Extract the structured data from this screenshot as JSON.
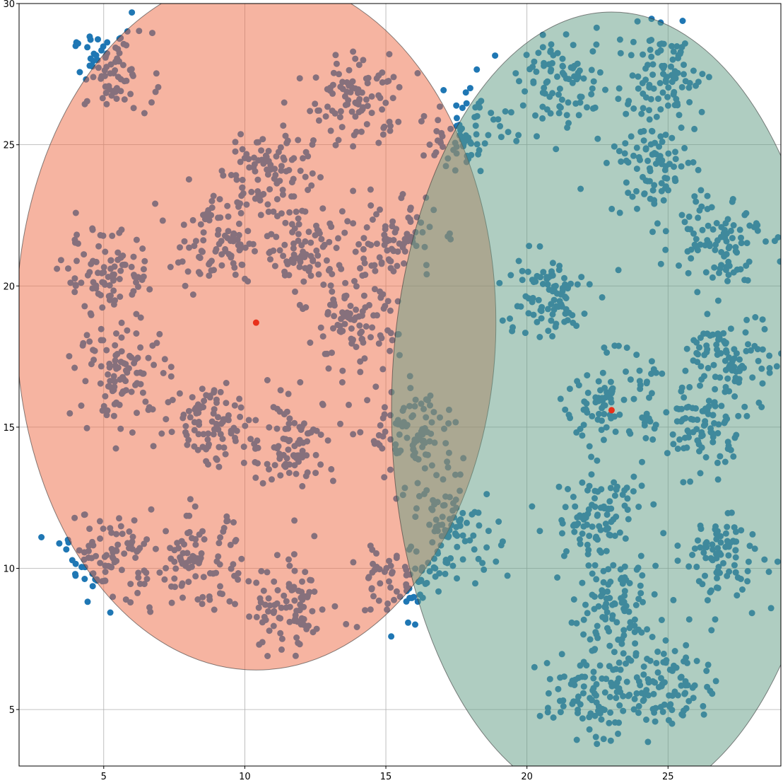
{
  "chart_data": {
    "type": "scatter",
    "title": "",
    "xlabel": "",
    "ylabel": "",
    "xlim": [
      2,
      29
    ],
    "ylim": [
      3,
      30
    ],
    "xticks": [
      5,
      10,
      15,
      20,
      25
    ],
    "yticks": [
      5,
      10,
      15,
      20,
      25,
      30
    ],
    "grid": true,
    "point_color": "#1f77b4",
    "point_size_note": "",
    "clusters": [
      {
        "cx": 5.3,
        "cy": 27.6,
        "sd": 0.7,
        "n": 80
      },
      {
        "cx": 14.0,
        "cy": 26.6,
        "sd": 0.8,
        "n": 95
      },
      {
        "cx": 10.8,
        "cy": 24.2,
        "sd": 0.8,
        "n": 90
      },
      {
        "cx": 9.0,
        "cy": 21.6,
        "sd": 0.8,
        "n": 95
      },
      {
        "cx": 12.0,
        "cy": 21.3,
        "sd": 0.8,
        "n": 90
      },
      {
        "cx": 15.2,
        "cy": 21.6,
        "sd": 0.8,
        "n": 85
      },
      {
        "cx": 5.2,
        "cy": 20.3,
        "sd": 0.8,
        "n": 95
      },
      {
        "cx": 13.8,
        "cy": 18.5,
        "sd": 0.8,
        "n": 90
      },
      {
        "cx": 5.7,
        "cy": 16.9,
        "sd": 0.8,
        "n": 95
      },
      {
        "cx": 8.8,
        "cy": 15.2,
        "sd": 0.8,
        "n": 90
      },
      {
        "cx": 11.7,
        "cy": 14.4,
        "sd": 0.8,
        "n": 95
      },
      {
        "cx": 16.0,
        "cy": 14.7,
        "sd": 0.8,
        "n": 95
      },
      {
        "cx": 5.2,
        "cy": 10.4,
        "sd": 0.8,
        "n": 95
      },
      {
        "cx": 8.3,
        "cy": 10.2,
        "sd": 0.8,
        "n": 90
      },
      {
        "cx": 11.5,
        "cy": 8.5,
        "sd": 0.8,
        "n": 90
      },
      {
        "cx": 15.3,
        "cy": 9.4,
        "sd": 0.8,
        "n": 70
      },
      {
        "cx": 17.4,
        "cy": 11.4,
        "sd": 0.8,
        "n": 90
      },
      {
        "cx": 17.9,
        "cy": 25.6,
        "sd": 0.8,
        "n": 75
      },
      {
        "cx": 21.3,
        "cy": 27.2,
        "sd": 0.8,
        "n": 90
      },
      {
        "cx": 24.8,
        "cy": 27.4,
        "sd": 0.8,
        "n": 95
      },
      {
        "cx": 24.4,
        "cy": 24.2,
        "sd": 0.8,
        "n": 90
      },
      {
        "cx": 26.8,
        "cy": 21.8,
        "sd": 0.8,
        "n": 95
      },
      {
        "cx": 20.6,
        "cy": 19.6,
        "sd": 0.8,
        "n": 90
      },
      {
        "cx": 27.3,
        "cy": 17.4,
        "sd": 0.8,
        "n": 95
      },
      {
        "cx": 22.9,
        "cy": 16.0,
        "sd": 0.8,
        "n": 90
      },
      {
        "cx": 26.1,
        "cy": 15.0,
        "sd": 0.8,
        "n": 95
      },
      {
        "cx": 22.6,
        "cy": 11.9,
        "sd": 0.8,
        "n": 95
      },
      {
        "cx": 26.8,
        "cy": 10.4,
        "sd": 0.8,
        "n": 90
      },
      {
        "cx": 23.0,
        "cy": 8.6,
        "sd": 0.8,
        "n": 95
      },
      {
        "cx": 22.2,
        "cy": 5.6,
        "sd": 0.8,
        "n": 95
      },
      {
        "cx": 25.0,
        "cy": 5.9,
        "sd": 0.8,
        "n": 95
      }
    ],
    "ellipses": [
      {
        "name": "",
        "center": [
          10.4,
          18.7
        ],
        "x_radius": 8.5,
        "y_radius": 12.3,
        "fill": "#ee6a43",
        "opacity": 0.5
      },
      {
        "name": "",
        "center": [
          23.0,
          15.6
        ],
        "x_radius": 7.8,
        "y_radius": 14.1,
        "fill": "#5f9b84",
        "opacity": 0.5
      }
    ],
    "centers": [
      {
        "x": 10.4,
        "y": 18.7,
        "color": "#e8301a"
      },
      {
        "x": 23.0,
        "y": 15.6,
        "color": "#e8301a"
      }
    ]
  }
}
